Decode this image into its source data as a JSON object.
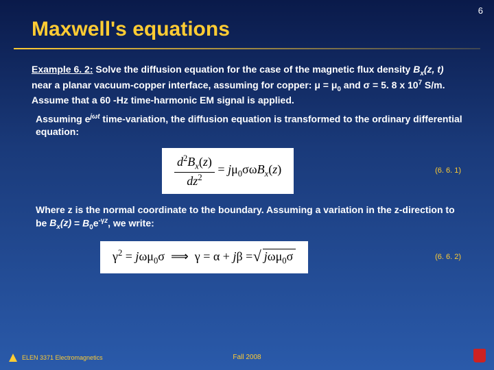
{
  "page_number": "6",
  "title": "Maxwell's equations",
  "example": {
    "label": "Example 6. 2:",
    "intro_html": " Solve the diffusion equation for the case of the magnetic flux density <span class='ital'>B<sub>x</sub>(z, t)</span> near a planar vacuum-copper interface, assuming for copper: μ = μ<sub>0</sub> and σ = 5. 8 x 10<sup>7</sup> S/m. Assume that a 60 -Hz time-harmonic EM signal is applied."
  },
  "assuming_html": "Assuming e<sup><span class='ital'>jωt</span></sup> time-variation, the diffusion equation is transformed to the ordinary differential equation:",
  "equation1": {
    "num": "(6. 6. 1)",
    "frac_num": "<span class='ital'>d</span><sup>2</sup><span class='ital'>B<sub>x</sub></span>(<span class='ital'>z</span>)",
    "frac_den": "<span class='ital'>dz</span><sup>2</sup>",
    "rhs": " = <span class='ital'>j</span>μ<sub>0</sub>σω<span class='ital'>B<sub>x</sub></span>(<span class='ital'>z</span>)"
  },
  "where_html": "Where z is the normal coordinate to the boundary. Assuming a variation in the z-direction to be <span class='ital'>B<sub>x</sub>(z)</span> = <span class='ital'>B</span><sub>0</sub>e<sup>-γ<span class='ital'>z</span></sup>, we write:",
  "equation2": {
    "num": "(6. 6. 2)",
    "lhs": "γ<sup>2</sup> = <span class='ital'>j</span>ωμ<sub>0</sub>σ &nbsp;⟹&nbsp; γ = α + <span class='ital'>j</span>β = ",
    "radicand": "<span class='ital'>j</span>ωμ<sub>0</sub>σ"
  },
  "footer": {
    "left": "ELEN 3371 Electromagnetics",
    "center": "Fall 2008"
  },
  "colors": {
    "title_color": "#ffcc33",
    "text_color": "#ffffff",
    "eq_num_color": "#ffcc33",
    "bg_gradient": [
      "#0a1a4a",
      "#1a3a7a",
      "#2a5aaa"
    ],
    "eq_box_bg": "#ffffff",
    "shield_bg": "#cc2222"
  },
  "typography": {
    "title_fontsize": 30,
    "body_fontsize": 14,
    "eq_fontsize": 18,
    "footer_fontsize": 9,
    "eq_num_fontsize": 11
  }
}
